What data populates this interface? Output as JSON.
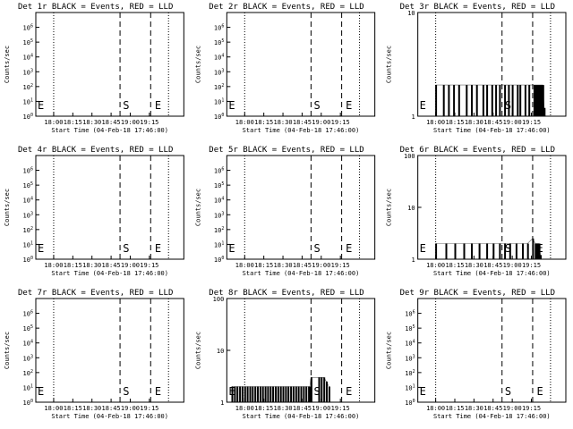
{
  "x_ticks": [
    "18:00",
    "18:15",
    "18:30",
    "18:45",
    "19:00",
    "19:15"
  ],
  "x_label": "Start Time (04-Feb-18 17:46:00)",
  "y_label": "Counts/sec",
  "marker_start": "S",
  "marker_end": "E",
  "colors": {
    "events": "#000000",
    "lld": "#ff0000"
  },
  "chart_data": [
    {
      "type": "line",
      "title": "Det 1r BLACK = Events, RED = LLD",
      "scale": "log",
      "ylim": [
        1,
        10000000
      ],
      "y_tick_labels": [
        "10^0",
        "10^1",
        "10^2",
        "10^3",
        "10^4",
        "10^5",
        "10^6"
      ],
      "x_range_minutes": [
        -14,
        102
      ],
      "e_left": true,
      "s_pos": 57,
      "e_right": 82,
      "dotted_x": [
        0,
        90
      ],
      "dashed_x": [
        52,
        76
      ],
      "series": []
    },
    {
      "type": "line",
      "title": "Det 2r BLACK = Events, RED = LLD",
      "scale": "log",
      "ylim": [
        1,
        10000000
      ],
      "y_tick_labels": [
        "10^0",
        "10^1",
        "10^2",
        "10^3",
        "10^4",
        "10^5",
        "10^6"
      ],
      "x_range_minutes": [
        -14,
        102
      ],
      "e_left": true,
      "s_pos": 57,
      "e_right": 82,
      "dotted_x": [
        0,
        90
      ],
      "dashed_x": [
        52,
        76
      ],
      "series": []
    },
    {
      "type": "line",
      "title": "Det 3r BLACK = Events, RED = LLD",
      "scale": "log",
      "ylim": [
        1,
        10
      ],
      "y_tick_labels": [
        "1",
        "10"
      ],
      "x_range_minutes": [
        -14,
        102
      ],
      "e_left": true,
      "s_pos": 57,
      "e_right": 82,
      "dotted_x": [
        0,
        90
      ],
      "dashed_x": [
        52,
        76
      ],
      "series": [
        {
          "x": [
            0,
            6,
            10,
            14,
            18,
            24,
            28,
            32,
            37,
            40,
            44,
            47,
            50,
            54,
            57,
            60,
            64,
            66,
            70,
            73,
            77,
            78,
            79,
            80,
            81,
            82,
            83,
            84,
            85
          ],
          "y": [
            2,
            2,
            2,
            2,
            2,
            2,
            2,
            2,
            2,
            2,
            2,
            2,
            2,
            2,
            2,
            2,
            2,
            2,
            2,
            2,
            2,
            2,
            2,
            2,
            2,
            2,
            2,
            2,
            1.2
          ]
        }
      ]
    },
    {
      "type": "line",
      "title": "Det 4r BLACK = Events, RED = LLD",
      "scale": "log",
      "ylim": [
        1,
        10000000
      ],
      "y_tick_labels": [
        "10^0",
        "10^1",
        "10^2",
        "10^3",
        "10^4",
        "10^5",
        "10^6"
      ],
      "x_range_minutes": [
        -14,
        102
      ],
      "e_left": true,
      "s_pos": 57,
      "e_right": 82,
      "dotted_x": [
        0,
        90
      ],
      "dashed_x": [
        52,
        76
      ],
      "series": []
    },
    {
      "type": "line",
      "title": "Det 5r BLACK = Events, RED = LLD",
      "scale": "log",
      "ylim": [
        1,
        10000000
      ],
      "y_tick_labels": [
        "10^0",
        "10^1",
        "10^2",
        "10^3",
        "10^4",
        "10^5",
        "10^6"
      ],
      "x_range_minutes": [
        -14,
        102
      ],
      "e_left": true,
      "s_pos": 57,
      "e_right": 82,
      "dotted_x": [
        0,
        90
      ],
      "dashed_x": [
        52,
        76
      ],
      "series": []
    },
    {
      "type": "line",
      "title": "Det 6r BLACK = Events, RED = LLD",
      "scale": "log",
      "ylim": [
        1,
        100
      ],
      "y_tick_labels": [
        "1",
        "10",
        "100"
      ],
      "x_range_minutes": [
        -14,
        102
      ],
      "e_left": true,
      "s_pos": 57,
      "e_right": 82,
      "dotted_x": [
        0,
        90
      ],
      "dashed_x": [
        52,
        76
      ],
      "series": [
        {
          "x": [
            0,
            8,
            15,
            22,
            28,
            34,
            40,
            45,
            50,
            54,
            58,
            63,
            68,
            72,
            76,
            78,
            79,
            80,
            81,
            82
          ],
          "y": [
            2,
            2,
            2,
            2,
            2,
            2,
            2,
            2,
            2,
            2,
            2,
            2,
            2,
            2,
            2.5,
            2,
            2,
            2,
            2,
            1.2
          ]
        }
      ]
    },
    {
      "type": "line",
      "title": "Det 7r BLACK = Events, RED = LLD",
      "scale": "log",
      "ylim": [
        1,
        10000000
      ],
      "y_tick_labels": [
        "10^0",
        "10^1",
        "10^2",
        "10^3",
        "10^4",
        "10^5",
        "10^6"
      ],
      "x_range_minutes": [
        -14,
        102
      ],
      "e_left": true,
      "s_pos": 57,
      "e_right": 82,
      "dotted_x": [
        0,
        90
      ],
      "dashed_x": [
        52,
        76
      ],
      "series": []
    },
    {
      "type": "line",
      "title": "Det 8r BLACK = Events, RED = LLD",
      "scale": "log",
      "ylim": [
        1,
        100
      ],
      "y_tick_labels": [
        "1",
        "10",
        "100"
      ],
      "x_range_minutes": [
        -14,
        102
      ],
      "e_left": true,
      "s_pos": 57,
      "e_right": 82,
      "dotted_x": [
        0,
        90
      ],
      "dashed_x": [
        52,
        76
      ],
      "series": [
        {
          "x": [
            -10,
            -8,
            -6,
            -4,
            -2,
            0,
            2,
            4,
            6,
            8,
            10,
            12,
            14,
            16,
            18,
            20,
            22,
            24,
            26,
            28,
            30,
            32,
            34,
            36,
            38,
            40,
            42,
            44,
            46,
            48,
            50,
            51,
            52,
            58,
            60,
            62,
            64,
            66
          ],
          "y": [
            2,
            2,
            2,
            2,
            2,
            2,
            2,
            2,
            2,
            2,
            2,
            2,
            2,
            2,
            2,
            2,
            2,
            2,
            2,
            2,
            2,
            2,
            2,
            2,
            2,
            2,
            2,
            2,
            2,
            2,
            2,
            2,
            3,
            3,
            3,
            3,
            2.5,
            2
          ]
        }
      ]
    },
    {
      "type": "line",
      "title": "Det 9r BLACK = Events, RED = LLD",
      "scale": "log",
      "ylim": [
        1,
        10000000
      ],
      "y_tick_labels": [
        "10^0",
        "10^1",
        "10^2",
        "10^3",
        "10^4",
        "10^5",
        "10^6"
      ],
      "x_range_minutes": [
        -14,
        102
      ],
      "e_left": true,
      "s_pos": 57,
      "e_right": 82,
      "dotted_x": [
        0,
        90
      ],
      "dashed_x": [
        52,
        76
      ],
      "series": []
    }
  ]
}
